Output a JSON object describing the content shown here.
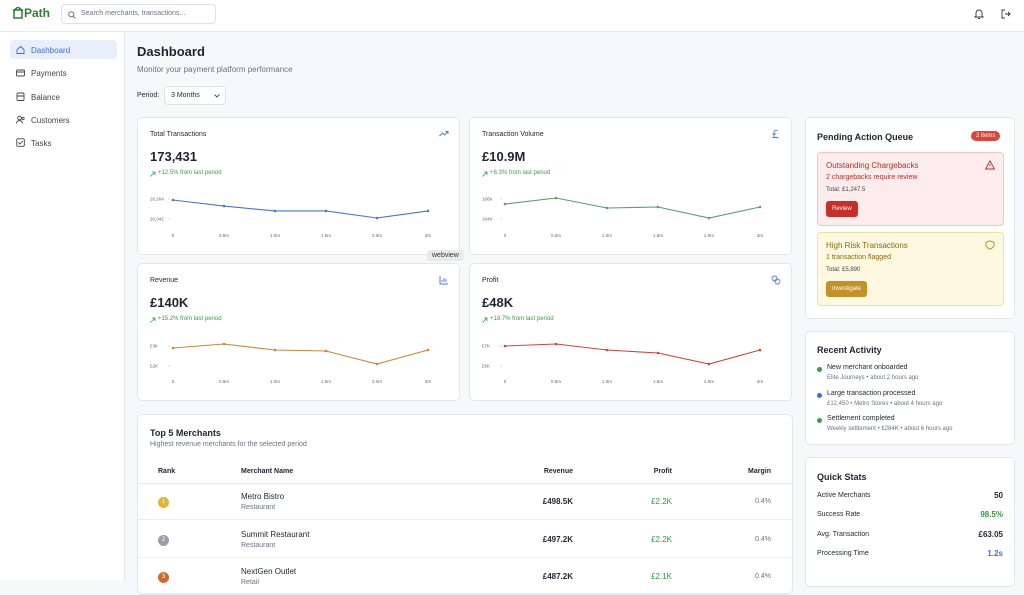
{
  "header": {
    "logo": "Path",
    "search_placeholder": "Search merchants, transactions..."
  },
  "sidebar": {
    "items": [
      "Dashboard",
      "Payments",
      "Balance",
      "Customers",
      "Tasks"
    ]
  },
  "page": {
    "title": "Dashboard",
    "subtitle": "Monitor your payment platform performance",
    "period_label": "Period:",
    "period_value": "3 Months"
  },
  "metrics": [
    {
      "label": "Total Transactions",
      "value": "173,431",
      "change": "+12.5% from last period",
      "chart": {
        "type": "line",
        "color": "#4a74d6",
        "categories": [
          "0",
          "0.5m",
          "1.0m",
          "1.5m",
          "2.0m",
          "3m"
        ],
        "values": [
          26253,
          26186,
          26131,
          26131,
          26053,
          26131
        ],
        "ylim": [
          25953,
          26353
        ],
        "yticks": [
          {
            "value": 26264,
            "label": "26,264"
          },
          {
            "value": 26042,
            "label": "26,042"
          }
        ]
      }
    },
    {
      "label": "Transaction Volume",
      "value": "£10.9M",
      "change": "+8.3% from last period",
      "chart": {
        "type": "line",
        "color": "#5a9e6a",
        "categories": [
          "0",
          "0.5m",
          "1.0m",
          "1.5m",
          "2.0m",
          "3m"
        ],
        "values": [
          165.5,
          166.1,
          165.1,
          165.2,
          164.1,
          165.2
        ],
        "ylim": [
          163.2,
          166.8
        ],
        "yticks": [
          {
            "value": 166,
            "label": "166K"
          },
          {
            "value": 164,
            "label": "164K"
          }
        ]
      }
    },
    {
      "label": "Revenue",
      "value": "£140K",
      "change": "+15.2% from last period",
      "chart": {
        "type": "line",
        "color": "#c9863a",
        "categories": [
          "0",
          "0.5m",
          "1.0m",
          "1.5m",
          "2.0m",
          "3m"
        ],
        "values": [
          2.9,
          3.1,
          2.8,
          2.75,
          2.1,
          2.8
        ],
        "ylim": [
          1.65,
          3.45
        ],
        "yticks": [
          {
            "value": 3,
            "label": "£3K"
          },
          {
            "value": 2,
            "label": "£2K"
          }
        ]
      }
    },
    {
      "label": "Profit",
      "value": "£48K",
      "change": "+18.7% from last period",
      "chart": {
        "type": "line",
        "color": "#c9463d",
        "categories": [
          "0",
          "0.5m",
          "1.0m",
          "1.5m",
          "2.0m",
          "3m"
        ],
        "values": [
          7.0,
          7.1,
          6.8,
          6.65,
          6.1,
          6.8
        ],
        "ylim": [
          5.65,
          7.45
        ],
        "yticks": [
          {
            "value": 7,
            "label": "£7K"
          },
          {
            "value": 6,
            "label": "£6K"
          }
        ]
      }
    }
  ],
  "tooltip": "webview",
  "merchants": {
    "title": "Top 5 Merchants",
    "subtitle": "Highest revenue merchants for the selected period",
    "columns": [
      "Rank",
      "Merchant Name",
      "Revenue",
      "Profit",
      "Margin"
    ],
    "rows": [
      {
        "rank": "1",
        "name": "Metro Bistro",
        "category": "Restaurant",
        "revenue": "£498.5K",
        "profit": "£2.2K",
        "margin": "0.4%"
      },
      {
        "rank": "2",
        "name": "Summit Restaurant",
        "category": "Restaurant",
        "revenue": "£497.2K",
        "profit": "£2.2K",
        "margin": "0.4%"
      },
      {
        "rank": "3",
        "name": "NextGen Outlet",
        "category": "Retail",
        "revenue": "£487.2K",
        "profit": "£2.1K",
        "margin": "0.4%"
      }
    ]
  },
  "pending": {
    "title": "Pending Action Queue",
    "badge": "2 items",
    "items": [
      {
        "title": "Outstanding Chargebacks",
        "description": "2 chargebacks require review",
        "total": "Total: £1,247.5",
        "button": "Review"
      },
      {
        "title": "High Risk Transactions",
        "description": "1 transaction flagged",
        "total": "Total: £5,890",
        "button": "Investigate"
      }
    ]
  },
  "activity": {
    "title": "Recent Activity",
    "items": [
      {
        "title": "New merchant onboarded",
        "description": "Elite Journeys • about 2 hours ago"
      },
      {
        "title": "Large transaction processed",
        "description": "£12,450 • Metro Stores • about 4 hours ago"
      },
      {
        "title": "Settlement completed",
        "description": "Weekly settlement • £284K • about 6 hours ago"
      }
    ]
  },
  "stats": {
    "title": "Quick Stats",
    "items": [
      {
        "label": "Active Merchants",
        "value": "50"
      },
      {
        "label": "Success Rate",
        "value": "98.5%"
      },
      {
        "label": "Avg. Transaction",
        "value": "£63.05"
      },
      {
        "label": "Processing Time",
        "value": "1.2s"
      }
    ]
  }
}
